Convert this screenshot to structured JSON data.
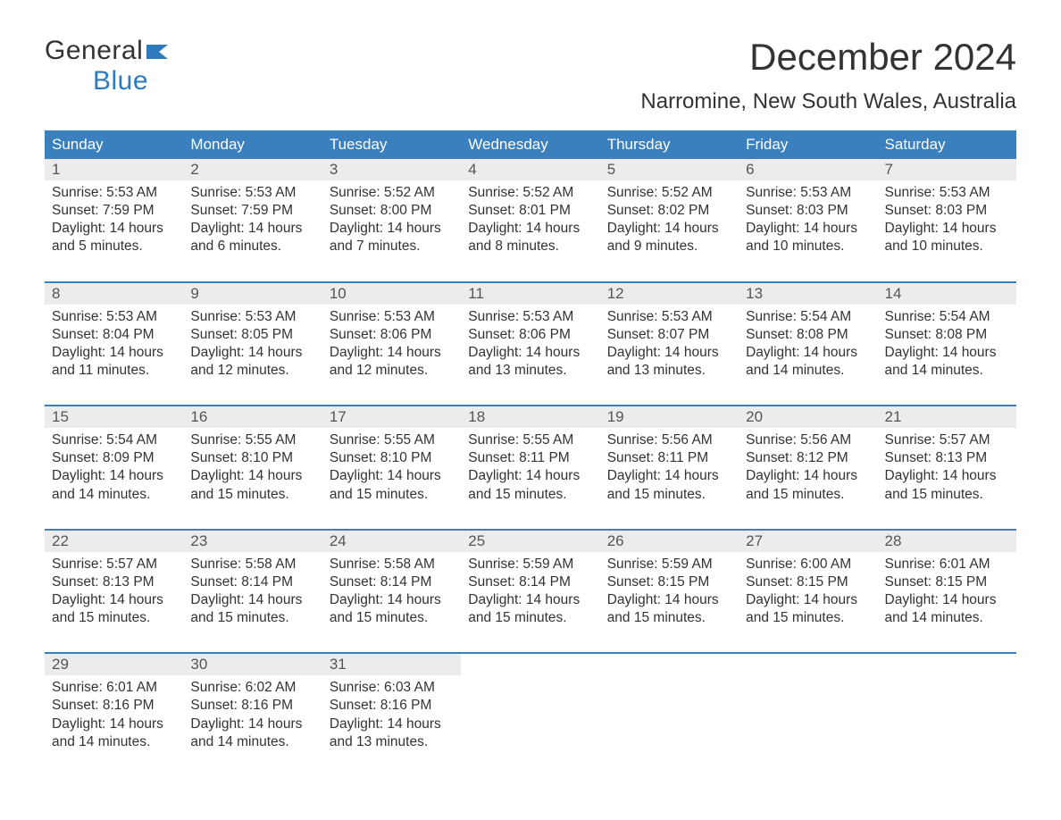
{
  "colors": {
    "header_bg": "#3a80bf",
    "week_border": "#3a80bf",
    "daynum_bg": "#ececec",
    "text": "#333333",
    "logo_blue": "#2d7bbd"
  },
  "fonts": {
    "title_size": 42,
    "subtitle_size": 24,
    "weekday_size": 17,
    "daynum_size": 17,
    "body_size": 15.5
  },
  "logo": {
    "part1": "General",
    "part2": "Blue"
  },
  "title": "December 2024",
  "subtitle": "Narromine, New South Wales, Australia",
  "weekdays": [
    "Sunday",
    "Monday",
    "Tuesday",
    "Wednesday",
    "Thursday",
    "Friday",
    "Saturday"
  ],
  "weeks": [
    [
      {
        "n": "1",
        "sr": "5:53 AM",
        "ss": "7:59 PM",
        "dl": "14 hours and 5 minutes."
      },
      {
        "n": "2",
        "sr": "5:53 AM",
        "ss": "7:59 PM",
        "dl": "14 hours and 6 minutes."
      },
      {
        "n": "3",
        "sr": "5:52 AM",
        "ss": "8:00 PM",
        "dl": "14 hours and 7 minutes."
      },
      {
        "n": "4",
        "sr": "5:52 AM",
        "ss": "8:01 PM",
        "dl": "14 hours and 8 minutes."
      },
      {
        "n": "5",
        "sr": "5:52 AM",
        "ss": "8:02 PM",
        "dl": "14 hours and 9 minutes."
      },
      {
        "n": "6",
        "sr": "5:53 AM",
        "ss": "8:03 PM",
        "dl": "14 hours and 10 minutes."
      },
      {
        "n": "7",
        "sr": "5:53 AM",
        "ss": "8:03 PM",
        "dl": "14 hours and 10 minutes."
      }
    ],
    [
      {
        "n": "8",
        "sr": "5:53 AM",
        "ss": "8:04 PM",
        "dl": "14 hours and 11 minutes."
      },
      {
        "n": "9",
        "sr": "5:53 AM",
        "ss": "8:05 PM",
        "dl": "14 hours and 12 minutes."
      },
      {
        "n": "10",
        "sr": "5:53 AM",
        "ss": "8:06 PM",
        "dl": "14 hours and 12 minutes."
      },
      {
        "n": "11",
        "sr": "5:53 AM",
        "ss": "8:06 PM",
        "dl": "14 hours and 13 minutes."
      },
      {
        "n": "12",
        "sr": "5:53 AM",
        "ss": "8:07 PM",
        "dl": "14 hours and 13 minutes."
      },
      {
        "n": "13",
        "sr": "5:54 AM",
        "ss": "8:08 PM",
        "dl": "14 hours and 14 minutes."
      },
      {
        "n": "14",
        "sr": "5:54 AM",
        "ss": "8:08 PM",
        "dl": "14 hours and 14 minutes."
      }
    ],
    [
      {
        "n": "15",
        "sr": "5:54 AM",
        "ss": "8:09 PM",
        "dl": "14 hours and 14 minutes."
      },
      {
        "n": "16",
        "sr": "5:55 AM",
        "ss": "8:10 PM",
        "dl": "14 hours and 15 minutes."
      },
      {
        "n": "17",
        "sr": "5:55 AM",
        "ss": "8:10 PM",
        "dl": "14 hours and 15 minutes."
      },
      {
        "n": "18",
        "sr": "5:55 AM",
        "ss": "8:11 PM",
        "dl": "14 hours and 15 minutes."
      },
      {
        "n": "19",
        "sr": "5:56 AM",
        "ss": "8:11 PM",
        "dl": "14 hours and 15 minutes."
      },
      {
        "n": "20",
        "sr": "5:56 AM",
        "ss": "8:12 PM",
        "dl": "14 hours and 15 minutes."
      },
      {
        "n": "21",
        "sr": "5:57 AM",
        "ss": "8:13 PM",
        "dl": "14 hours and 15 minutes."
      }
    ],
    [
      {
        "n": "22",
        "sr": "5:57 AM",
        "ss": "8:13 PM",
        "dl": "14 hours and 15 minutes."
      },
      {
        "n": "23",
        "sr": "5:58 AM",
        "ss": "8:14 PM",
        "dl": "14 hours and 15 minutes."
      },
      {
        "n": "24",
        "sr": "5:58 AM",
        "ss": "8:14 PM",
        "dl": "14 hours and 15 minutes."
      },
      {
        "n": "25",
        "sr": "5:59 AM",
        "ss": "8:14 PM",
        "dl": "14 hours and 15 minutes."
      },
      {
        "n": "26",
        "sr": "5:59 AM",
        "ss": "8:15 PM",
        "dl": "14 hours and 15 minutes."
      },
      {
        "n": "27",
        "sr": "6:00 AM",
        "ss": "8:15 PM",
        "dl": "14 hours and 15 minutes."
      },
      {
        "n": "28",
        "sr": "6:01 AM",
        "ss": "8:15 PM",
        "dl": "14 hours and 14 minutes."
      }
    ],
    [
      {
        "n": "29",
        "sr": "6:01 AM",
        "ss": "8:16 PM",
        "dl": "14 hours and 14 minutes."
      },
      {
        "n": "30",
        "sr": "6:02 AM",
        "ss": "8:16 PM",
        "dl": "14 hours and 14 minutes."
      },
      {
        "n": "31",
        "sr": "6:03 AM",
        "ss": "8:16 PM",
        "dl": "14 hours and 13 minutes."
      },
      null,
      null,
      null,
      null
    ]
  ],
  "labels": {
    "sunrise": "Sunrise: ",
    "sunset": "Sunset: ",
    "daylight": "Daylight: "
  }
}
